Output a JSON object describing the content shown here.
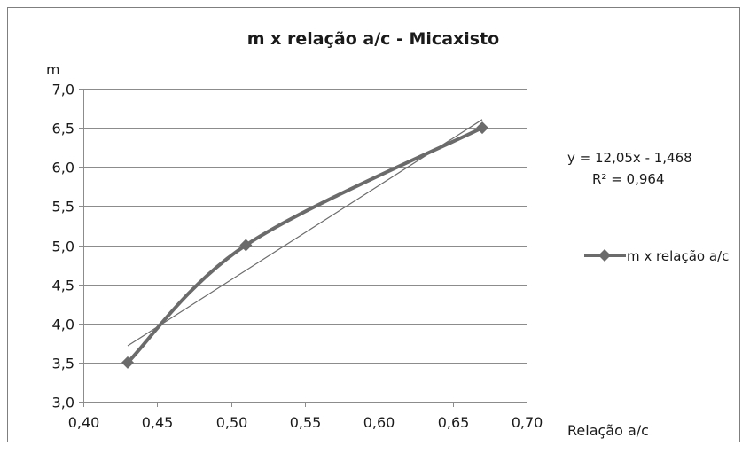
{
  "chart_data": {
    "type": "scatter",
    "title": "m x relação a/c - Micaxisto",
    "xlabel": "Relação a/c",
    "ylabel": "m",
    "xlim": [
      0.4,
      0.7
    ],
    "ylim": [
      3.0,
      7.0
    ],
    "x_ticks": [
      "0,40",
      "0,45",
      "0,50",
      "0,55",
      "0,60",
      "0,65",
      "0,70"
    ],
    "x_tick_values": [
      0.4,
      0.45,
      0.5,
      0.55,
      0.6,
      0.65,
      0.7
    ],
    "y_ticks": [
      "3,0",
      "3,5",
      "4,0",
      "4,5",
      "5,0",
      "5,5",
      "6,0",
      "6,5",
      "7,0"
    ],
    "y_tick_values": [
      3.0,
      3.5,
      4.0,
      4.5,
      5.0,
      5.5,
      6.0,
      6.5,
      7.0
    ],
    "grid": "horizontal",
    "legend_position": "right",
    "series": [
      {
        "name": "m x relação a/c",
        "x": [
          0.43,
          0.51,
          0.67
        ],
        "y": [
          3.5,
          5.0,
          6.5
        ],
        "color": "#6b6b6b",
        "marker": "diamond",
        "line": "smooth"
      }
    ],
    "trendline": {
      "type": "linear",
      "slope": 12.05,
      "intercept": -1.468,
      "x_range": [
        0.43,
        0.67
      ],
      "color": "#6b6b6b",
      "equation": "y = 12,05x - 1,468",
      "r2": "R² = 0,964"
    }
  }
}
